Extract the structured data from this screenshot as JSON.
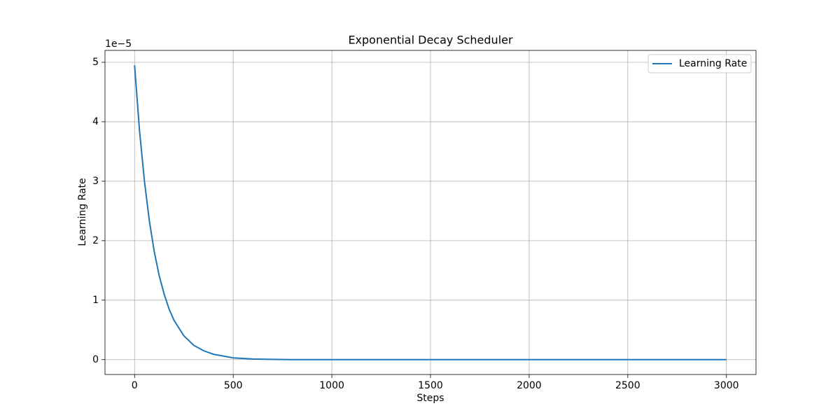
{
  "chart_data": {
    "type": "line",
    "title": "Exponential Decay Scheduler",
    "x_label": "Steps",
    "y_label": "Learning Rate",
    "y_offset_label": "1e−5",
    "x": [
      0,
      25,
      50,
      75,
      100,
      125,
      150,
      175,
      200,
      250,
      300,
      350,
      400,
      500,
      600,
      800,
      1000,
      1500,
      2000,
      2500,
      3000
    ],
    "series": [
      {
        "name": "Learning Rate",
        "color": "#1f77b4",
        "values": [
          4.95,
          3.85,
          3.0,
          2.33,
          1.81,
          1.41,
          1.1,
          0.85,
          0.66,
          0.4,
          0.24,
          0.15,
          0.09,
          0.03,
          0.01,
          0,
          0,
          0,
          0,
          0,
          0
        ]
      }
    ],
    "xlim": [
      -150,
      3150
    ],
    "ylim": [
      -0.25,
      5.2
    ],
    "xticks": [
      0,
      500,
      1000,
      1500,
      2000,
      2500,
      3000
    ],
    "yticks": [
      0,
      1,
      2,
      3,
      4,
      5
    ],
    "grid": true,
    "legend": "upper-right"
  }
}
